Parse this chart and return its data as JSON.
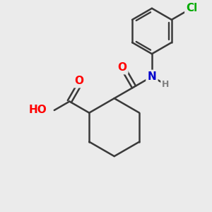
{
  "background_color": "#ebebeb",
  "bond_color": "#3a3a3a",
  "bond_width": 1.8,
  "atom_colors": {
    "O": "#ff0000",
    "N": "#0000cc",
    "Cl": "#00aa00",
    "H": "#808080"
  },
  "font_size_atoms": 11,
  "font_size_small": 9,
  "figsize": [
    3.0,
    3.0
  ],
  "dpi": 100
}
